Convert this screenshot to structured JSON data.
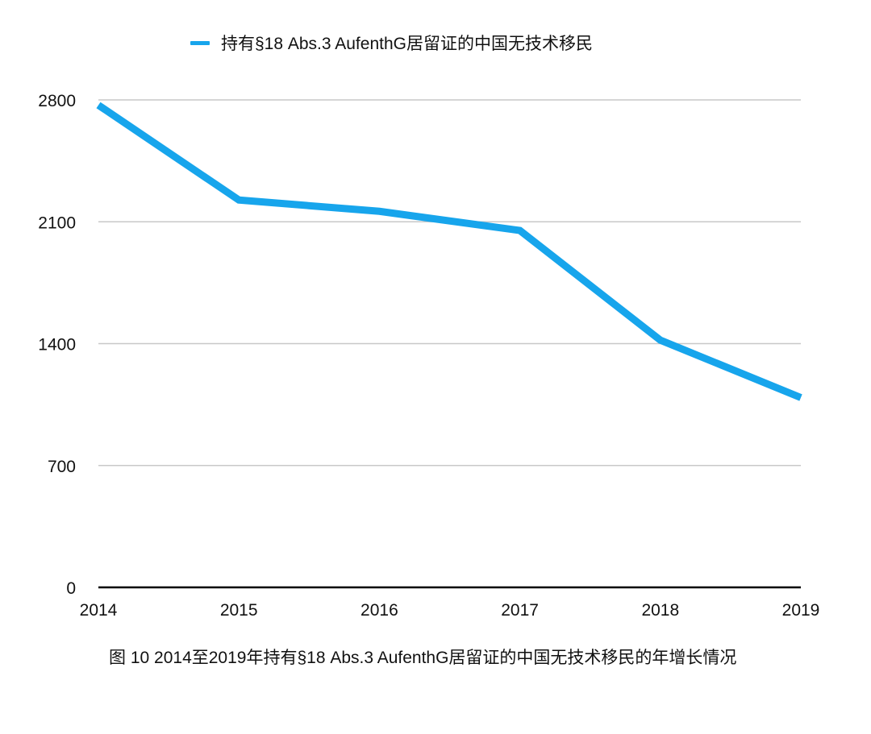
{
  "legend": {
    "label": "持有§18 Abs.3 AufenthG居留证的中国无技术移民",
    "color": "#17a5ec"
  },
  "caption": "图 10 2014至2019年持有§18 Abs.3 AufenthG居留证的中国无技术移民的年增长情况",
  "chart_data": {
    "type": "line",
    "title": "",
    "xlabel": "",
    "ylabel": "",
    "categories": [
      "2014",
      "2015",
      "2016",
      "2017",
      "2018",
      "2019"
    ],
    "series": [
      {
        "name": "持有§18 Abs.3 AufenthG居留证的中国无技术移民",
        "color": "#17a5ec",
        "values": [
          2770,
          2225,
          2160,
          2050,
          1420,
          1090
        ]
      }
    ],
    "yticks": [
      "0",
      "700",
      "1400",
      "2100",
      "2800"
    ],
    "ylim": [
      0,
      2800
    ],
    "grid": true,
    "legend_position": "top",
    "caption": "图 10 2014至2019年持有§18 Abs.3 AufenthG居留证的中国无技术移民的年增长情况"
  }
}
